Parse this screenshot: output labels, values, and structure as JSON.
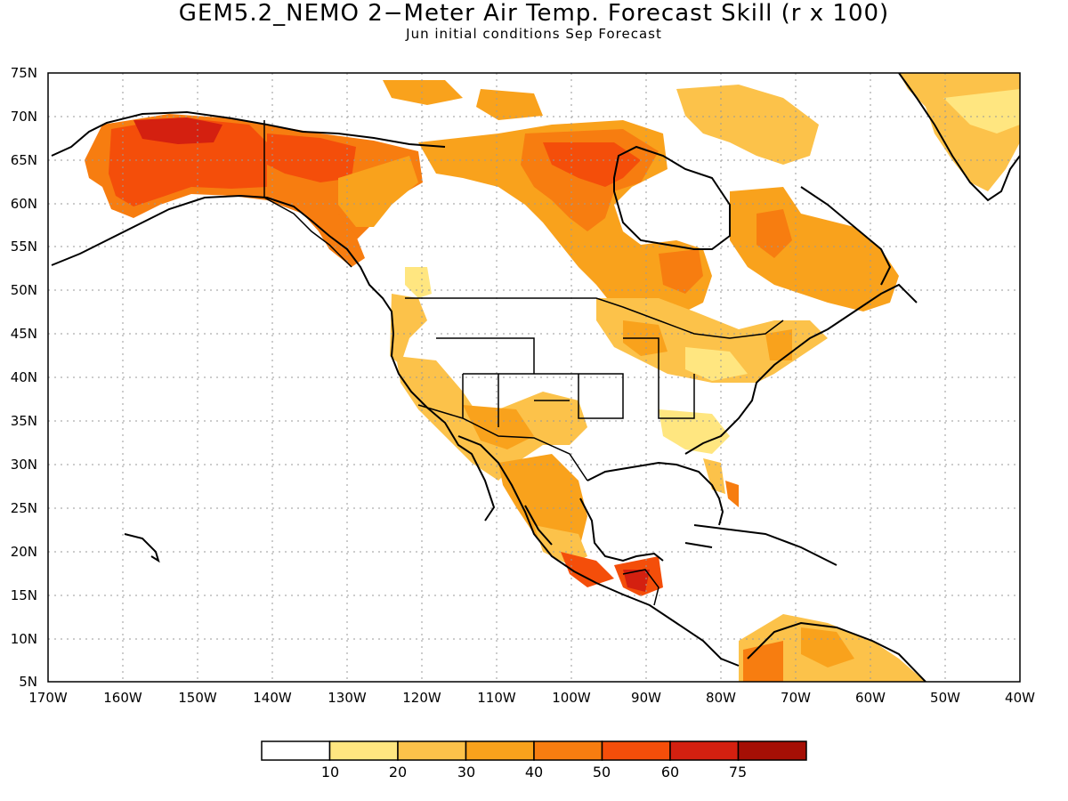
{
  "title": "GEM5.2_NEMO 2−Meter Air Temp. Forecast Skill (r x 100)",
  "subtitle": "Jun initial conditions  Sep Forecast",
  "lat_labels": [
    "75N",
    "70N",
    "65N",
    "60N",
    "55N",
    "50N",
    "45N",
    "40N",
    "35N",
    "30N",
    "25N",
    "20N",
    "15N",
    "10N",
    "5N"
  ],
  "lon_labels": [
    "170W",
    "160W",
    "150W",
    "140W",
    "130W",
    "120W",
    "110W",
    "100W",
    "90W",
    "80W",
    "70W",
    "60W",
    "50W",
    "40W"
  ],
  "colorbar": {
    "labels": [
      "10",
      "20",
      "30",
      "40",
      "50",
      "60",
      "75"
    ],
    "colors": [
      "#ffffff",
      "#ffe680",
      "#fcc24a",
      "#f9a21c",
      "#f77d10",
      "#f44e0a",
      "#d42010",
      "#a50f05"
    ]
  }
}
